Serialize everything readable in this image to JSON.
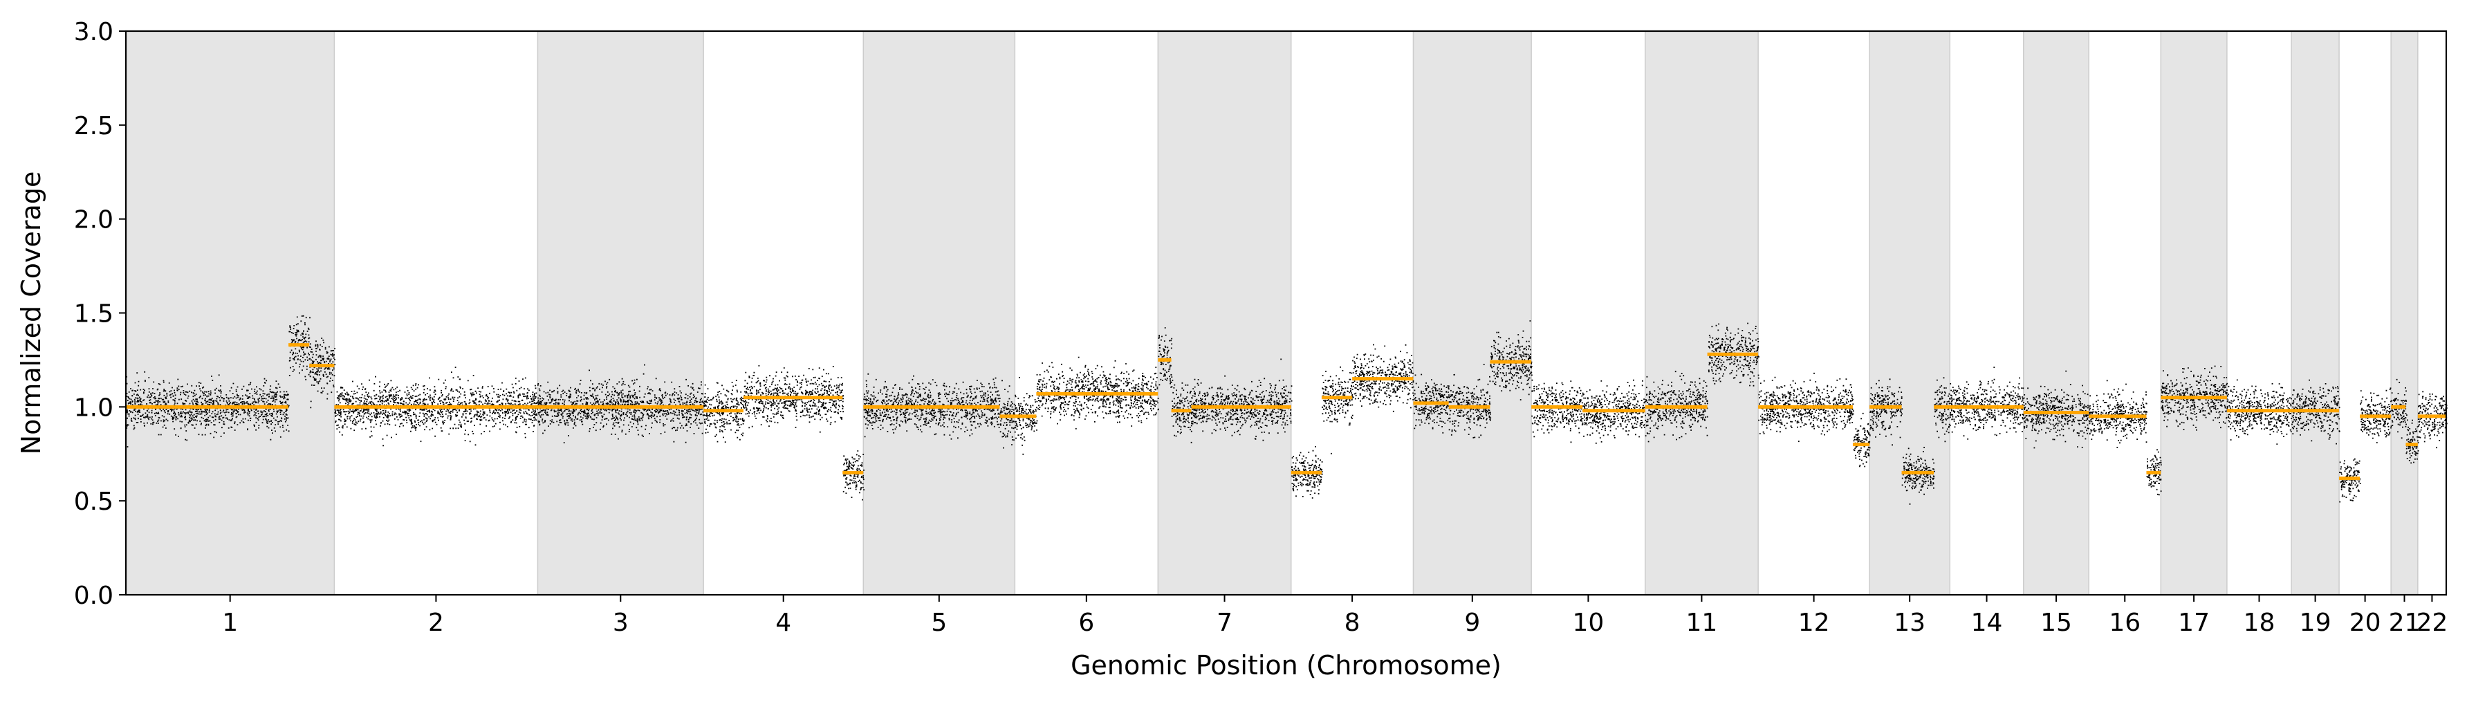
{
  "chart_data": {
    "type": "scatter",
    "xlabel": "Genomic Position (Chromosome)",
    "ylabel": "Normalized Coverage",
    "ylim": [
      0,
      3.0
    ],
    "yticks": [
      "0.0",
      "0.5",
      "1.0",
      "1.5",
      "2.0",
      "2.5",
      "3.0"
    ],
    "grid": false,
    "legend": "none",
    "colors": {
      "points": "#000000",
      "segments": "#ffa500",
      "shade": "#e5e5e5",
      "shade_border": "#cccccc"
    },
    "chromosomes": [
      {
        "label": "1",
        "size": 249,
        "shaded": true
      },
      {
        "label": "2",
        "size": 243,
        "shaded": false
      },
      {
        "label": "3",
        "size": 198,
        "shaded": true
      },
      {
        "label": "4",
        "size": 191,
        "shaded": false
      },
      {
        "label": "5",
        "size": 181,
        "shaded": true
      },
      {
        "label": "6",
        "size": 171,
        "shaded": false
      },
      {
        "label": "7",
        "size": 159,
        "shaded": true
      },
      {
        "label": "8",
        "size": 146,
        "shaded": false
      },
      {
        "label": "9",
        "size": 141,
        "shaded": true
      },
      {
        "label": "10",
        "size": 136,
        "shaded": false
      },
      {
        "label": "11",
        "size": 135,
        "shaded": true
      },
      {
        "label": "12",
        "size": 133,
        "shaded": false
      },
      {
        "label": "13",
        "size": 96,
        "shaded": true
      },
      {
        "label": "14",
        "size": 88,
        "shaded": false
      },
      {
        "label": "15",
        "size": 78,
        "shaded": true
      },
      {
        "label": "16",
        "size": 86,
        "shaded": false
      },
      {
        "label": "17",
        "size": 79,
        "shaded": true
      },
      {
        "label": "18",
        "size": 77,
        "shaded": false
      },
      {
        "label": "19",
        "size": 57,
        "shaded": true
      },
      {
        "label": "20",
        "size": 62,
        "shaded": false
      },
      {
        "label": "21",
        "size": 32,
        "shaded": true
      },
      {
        "label": "22",
        "size": 34,
        "shaded": false
      }
    ],
    "segments": [
      {
        "chrom": "1",
        "start": 0.0,
        "end": 0.48,
        "value": 1.0
      },
      {
        "chrom": "1",
        "start": 0.48,
        "end": 0.78,
        "value": 1.0
      },
      {
        "chrom": "1",
        "start": 0.78,
        "end": 0.88,
        "value": 1.33
      },
      {
        "chrom": "1",
        "start": 0.88,
        "end": 1.0,
        "value": 1.22
      },
      {
        "chrom": "2",
        "start": 0.0,
        "end": 1.0,
        "value": 1.0
      },
      {
        "chrom": "3",
        "start": 0.0,
        "end": 1.0,
        "value": 1.0
      },
      {
        "chrom": "4",
        "start": 0.0,
        "end": 0.25,
        "value": 0.98
      },
      {
        "chrom": "4",
        "start": 0.25,
        "end": 0.87,
        "value": 1.05
      },
      {
        "chrom": "4",
        "start": 0.87,
        "end": 1.0,
        "value": 0.65
      },
      {
        "chrom": "5",
        "start": 0.0,
        "end": 0.9,
        "value": 1.0
      },
      {
        "chrom": "5",
        "start": 0.9,
        "end": 1.0,
        "value": 0.95
      },
      {
        "chrom": "6",
        "start": 0.0,
        "end": 0.15,
        "value": 0.95
      },
      {
        "chrom": "6",
        "start": 0.15,
        "end": 1.0,
        "value": 1.07
      },
      {
        "chrom": "7",
        "start": 0.0,
        "end": 0.1,
        "value": 1.25
      },
      {
        "chrom": "7",
        "start": 0.1,
        "end": 0.25,
        "value": 0.98
      },
      {
        "chrom": "7",
        "start": 0.25,
        "end": 1.0,
        "value": 1.0
      },
      {
        "chrom": "8",
        "start": 0.0,
        "end": 0.25,
        "value": 0.65
      },
      {
        "chrom": "8",
        "start": 0.25,
        "end": 0.5,
        "value": 1.05
      },
      {
        "chrom": "8",
        "start": 0.5,
        "end": 1.0,
        "value": 1.15
      },
      {
        "chrom": "9",
        "start": 0.0,
        "end": 0.3,
        "value": 1.02
      },
      {
        "chrom": "9",
        "start": 0.3,
        "end": 0.65,
        "value": 1.0
      },
      {
        "chrom": "9",
        "start": 0.65,
        "end": 1.0,
        "value": 1.24
      },
      {
        "chrom": "10",
        "start": 0.0,
        "end": 0.45,
        "value": 1.0
      },
      {
        "chrom": "10",
        "start": 0.45,
        "end": 1.0,
        "value": 0.98
      },
      {
        "chrom": "11",
        "start": 0.0,
        "end": 0.55,
        "value": 1.0
      },
      {
        "chrom": "11",
        "start": 0.55,
        "end": 1.0,
        "value": 1.28
      },
      {
        "chrom": "12",
        "start": 0.0,
        "end": 0.85,
        "value": 1.0
      },
      {
        "chrom": "12",
        "start": 0.85,
        "end": 1.0,
        "value": 0.8
      },
      {
        "chrom": "13",
        "start": 0.0,
        "end": 0.4,
        "value": 1.0
      },
      {
        "chrom": "13",
        "start": 0.4,
        "end": 0.8,
        "value": 0.65
      },
      {
        "chrom": "13",
        "start": 0.8,
        "end": 1.0,
        "value": 1.0
      },
      {
        "chrom": "14",
        "start": 0.0,
        "end": 1.0,
        "value": 1.0
      },
      {
        "chrom": "15",
        "start": 0.0,
        "end": 1.0,
        "value": 0.97
      },
      {
        "chrom": "16",
        "start": 0.0,
        "end": 0.8,
        "value": 0.95
      },
      {
        "chrom": "16",
        "start": 0.8,
        "end": 1.0,
        "value": 0.65
      },
      {
        "chrom": "17",
        "start": 0.0,
        "end": 1.0,
        "value": 1.05
      },
      {
        "chrom": "18",
        "start": 0.0,
        "end": 1.0,
        "value": 0.98
      },
      {
        "chrom": "19",
        "start": 0.0,
        "end": 1.0,
        "value": 0.98
      },
      {
        "chrom": "20",
        "start": 0.0,
        "end": 0.4,
        "value": 0.62
      },
      {
        "chrom": "20",
        "start": 0.4,
        "end": 1.0,
        "value": 0.95
      },
      {
        "chrom": "21",
        "start": 0.0,
        "end": 0.55,
        "value": 1.0
      },
      {
        "chrom": "21",
        "start": 0.55,
        "end": 1.0,
        "value": 0.8
      },
      {
        "chrom": "22",
        "start": 0.0,
        "end": 1.0,
        "value": 0.95
      }
    ]
  }
}
